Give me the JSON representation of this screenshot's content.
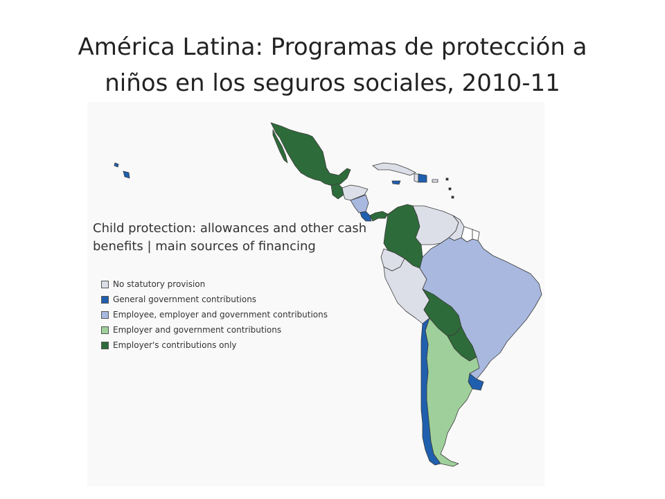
{
  "slide": {
    "title_line1": "América Latina: Programas de protección a",
    "title_line2": "niños en los seguros sociales, 2010-11"
  },
  "legend": {
    "title_line1": "Child protection: allowances and other cash",
    "title_line2": "benefits | main sources of financing",
    "items": [
      {
        "label": "No statutory provision",
        "color": "#dcdfe8"
      },
      {
        "label": "General government contributions",
        "color": "#1f5fae"
      },
      {
        "label": "Employee, employer and government contributions",
        "color": "#a8b8de"
      },
      {
        "label": "Employer and government contributions",
        "color": "#9fd09b"
      },
      {
        "label": "Employer's contributions only",
        "color": "#2e6b3a"
      }
    ]
  },
  "regions": {
    "mexico": "Employer's contributions only",
    "guatemala": "Employer's contributions only",
    "central_america_north": "No statutory provision",
    "nicaragua": "Employee, employer and government contributions",
    "costa_rica": "General government contributions",
    "panama": "Employer's contributions only",
    "cuba": "No statutory provision",
    "dominican_republic": "General government contributions",
    "colombia": "Employer's contributions only",
    "venezuela": "No statutory provision",
    "guyanas": "No statutory provision",
    "ecuador": "No statutory provision",
    "peru": "No statutory provision",
    "brazil": "Employee, employer and government contributions",
    "bolivia": "Employer's contributions only",
    "paraguay": "Employer's contributions only",
    "chile": "General government contributions",
    "argentina": "Employer and government contributions",
    "uruguay": "General government contributions"
  }
}
